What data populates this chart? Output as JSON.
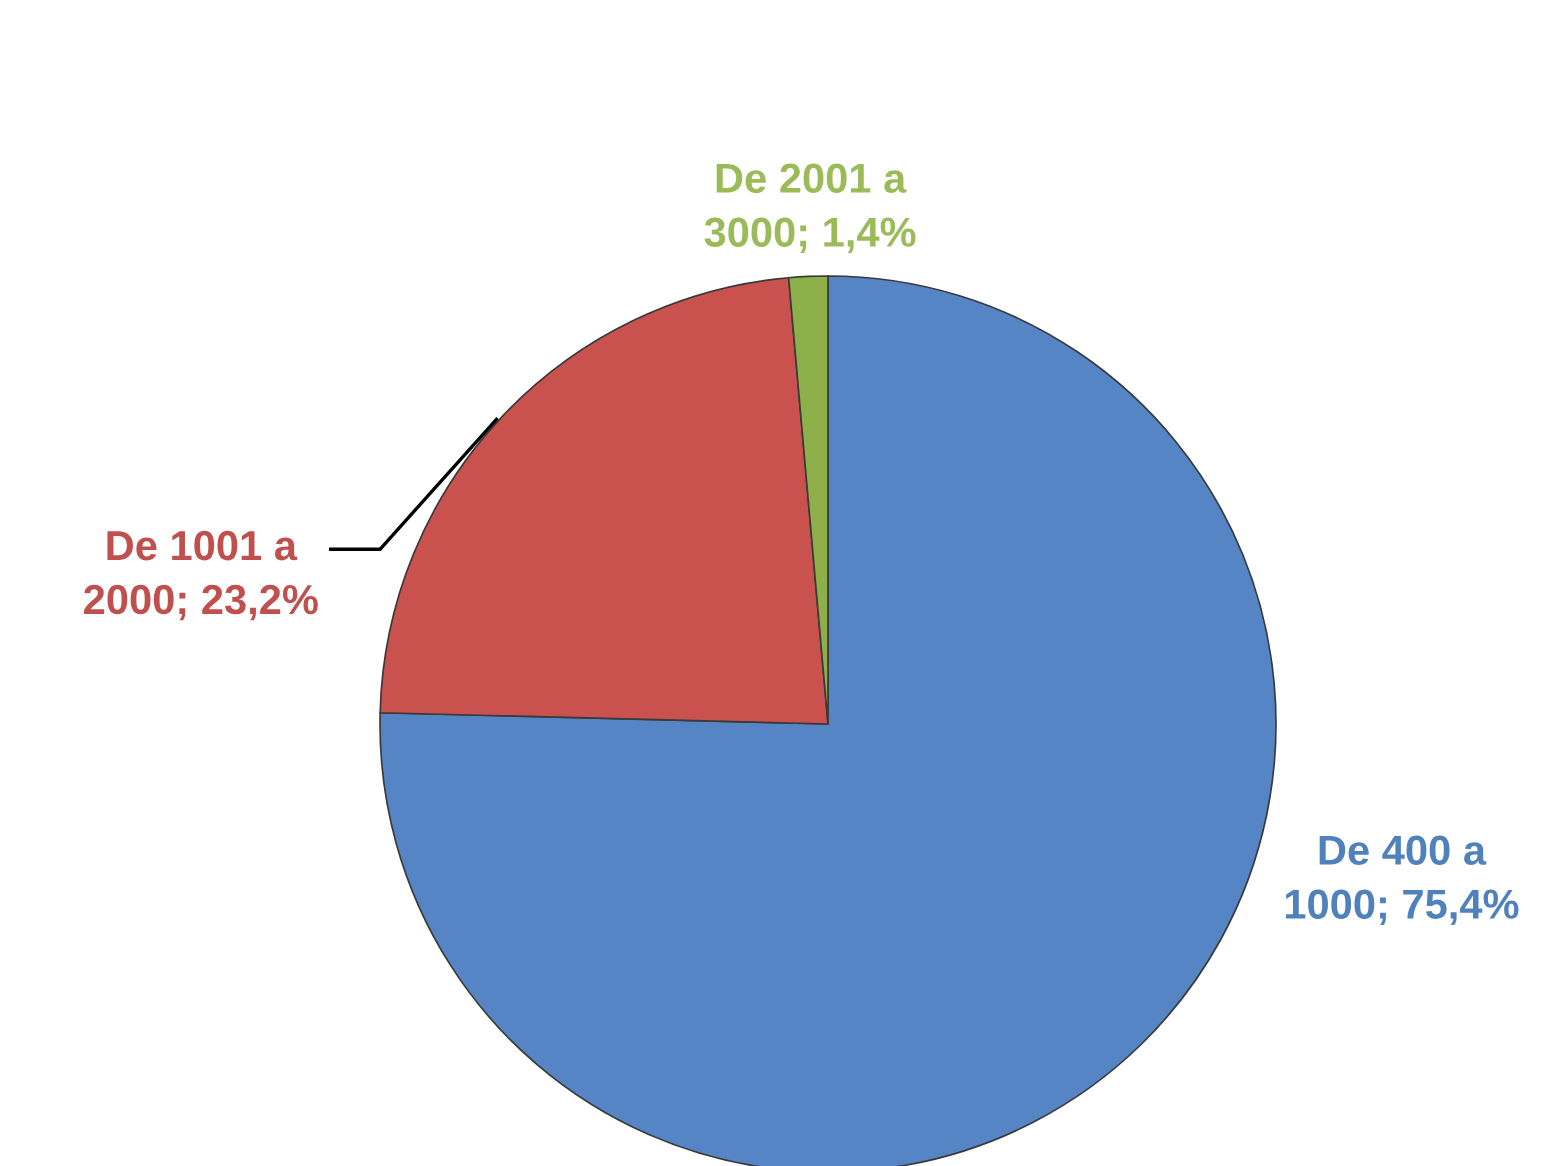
{
  "chart_data": {
    "type": "pie",
    "categories": [
      "De 400 a 1000",
      "De 1001 a 2000",
      "De 2001 a 3000"
    ],
    "values": [
      75.4,
      23.2,
      1.4
    ],
    "colors": [
      "#5585c5",
      "#c9524f",
      "#8db04a"
    ],
    "value_labels": [
      "75,4%",
      "23,2%",
      "1,4%"
    ],
    "legend": false
  }
}
